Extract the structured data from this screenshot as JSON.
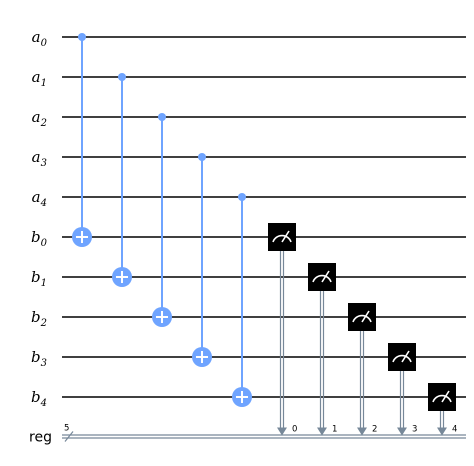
{
  "circuit": {
    "qubits": [
      {
        "base": "a",
        "index": "0"
      },
      {
        "base": "a",
        "index": "1"
      },
      {
        "base": "a",
        "index": "2"
      },
      {
        "base": "a",
        "index": "3"
      },
      {
        "base": "a",
        "index": "4"
      },
      {
        "base": "b",
        "index": "0"
      },
      {
        "base": "b",
        "index": "1"
      },
      {
        "base": "b",
        "index": "2"
      },
      {
        "base": "b",
        "index": "3"
      },
      {
        "base": "b",
        "index": "4"
      }
    ],
    "classical_register": {
      "name": "reg",
      "size": "5"
    },
    "gates": [
      {
        "type": "cx",
        "control": 0,
        "target": 5
      },
      {
        "type": "cx",
        "control": 1,
        "target": 6
      },
      {
        "type": "cx",
        "control": 2,
        "target": 7
      },
      {
        "type": "cx",
        "control": 3,
        "target": 8
      },
      {
        "type": "cx",
        "control": 4,
        "target": 9
      }
    ],
    "measurements": [
      {
        "qubit": 5,
        "bit": "0"
      },
      {
        "qubit": 6,
        "bit": "1"
      },
      {
        "qubit": 7,
        "bit": "2"
      },
      {
        "qubit": 8,
        "bit": "3"
      },
      {
        "qubit": 9,
        "bit": "4"
      }
    ],
    "colors": {
      "gate": "#6fa4ff",
      "measure": "#000000",
      "classical": "#778899",
      "wire": "#000000"
    }
  }
}
